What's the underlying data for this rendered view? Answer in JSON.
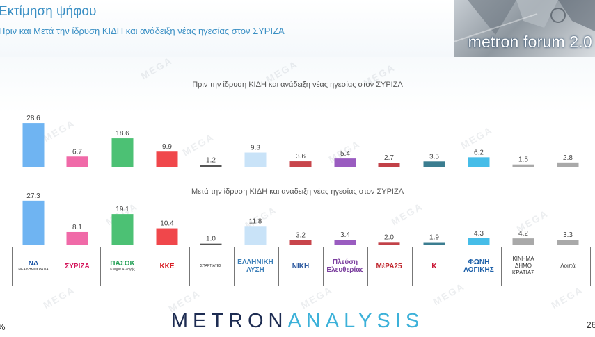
{
  "header": {
    "title": "Εκτίμηση ψήφου",
    "subtitle": "Πριν και Μετά την ίδρυση ΚΙΔΗ και ανάδειξη νέας ηγεσίας στον ΣΥΡΙΖΑ",
    "logo_text": "metron forum 2.0"
  },
  "footer": {
    "brand_part1": "METRON",
    "brand_part2": "ANALYSIS",
    "page_number": "26",
    "pct_mark": "%"
  },
  "watermark": "MEGA",
  "parties": [
    {
      "label": "ΝΔ",
      "sublabel": "ΝΕΑ ΔΗΜΟΚΡΑΤΙΑ",
      "color": "#1f57a6",
      "icon": "nd-logo-icon"
    },
    {
      "label": "ΣΥΡΙΖΑ",
      "sublabel": "",
      "color": "#d4145a",
      "icon": "syriza-logo-icon"
    },
    {
      "label": "ΠΑΣΟΚ",
      "sublabel": "Κίνημα Αλλαγής",
      "color": "#1f9e52",
      "icon": "pasok-logo-icon"
    },
    {
      "label": "ΚΚΕ",
      "sublabel": "",
      "color": "#d81f26",
      "icon": "kke-logo-icon"
    },
    {
      "label": "",
      "sublabel": "ΣΠΑΡΤΙΑΤΕΣ",
      "color": "#b5782c",
      "icon": "spartiates-logo-icon"
    },
    {
      "label": "ΕΛΛΗΝΙΚΗ ΛΥΣΗ",
      "sublabel": "",
      "color": "#3c7fb8",
      "icon": "elliniki-lysi-logo-icon"
    },
    {
      "label": "ΝΙΚΗ",
      "sublabel": "",
      "color": "#2d5aa0",
      "icon": "niki-logo-icon"
    },
    {
      "label": "Πλεύση Ελευθερίας",
      "sublabel": "",
      "color": "#7b3f9e",
      "icon": "plefsi-logo-icon"
    },
    {
      "label": "ΜέΡΑ25",
      "sublabel": "",
      "color": "#c0262d",
      "icon": "mera25-logo-icon"
    },
    {
      "label": "Κ",
      "sublabel": "",
      "color": "#c8102e",
      "icon": "kidi-logo-icon"
    },
    {
      "label": "ΦΩΝΗ ΛΟΓΙΚΗΣ",
      "sublabel": "",
      "color": "#1c5fa8",
      "icon": "foni-logikis-logo-icon"
    },
    {
      "label": "ΚΙΝΗΜΑ ΔΗΜΟ ΚΡΑΤΙΑΣ",
      "sublabel": "",
      "color": "#333333",
      "icon": ""
    },
    {
      "label": "Λοιπά",
      "sublabel": "",
      "color": "#333333",
      "icon": ""
    }
  ],
  "chart_data": [
    {
      "type": "bar",
      "title": "Πριν την ίδρυση ΚΙΔΗ και ανάδειξη νέας ηγεσίας στον ΣΥΡΙΖΑ",
      "values": [
        28.6,
        6.7,
        18.6,
        9.9,
        1.2,
        9.3,
        3.6,
        5.4,
        2.7,
        3.5,
        6.2,
        1.5,
        2.8
      ],
      "colors": [
        "#6fb4f2",
        "#f06aa8",
        "#4cc174",
        "#f0474b",
        "#555555",
        "#c9e3f8",
        "#c8454b",
        "#9a5cc0",
        "#c24148",
        "#3b7d90",
        "#46bde8",
        "#a9a9a9",
        "#a9a9a9"
      ],
      "grid": false,
      "legend": "none"
    },
    {
      "type": "bar",
      "title": "Μετά την ίδρυση ΚΙΔΗ και ανάδειξη νέας ηγεσίας στον ΣΥΡΙΖΑ",
      "values": [
        27.3,
        8.1,
        19.1,
        10.4,
        1.0,
        11.8,
        3.2,
        3.4,
        2.0,
        1.9,
        4.3,
        4.2,
        3.3
      ],
      "colors": [
        "#6fb4f2",
        "#f06aa8",
        "#4cc174",
        "#f0474b",
        "#555555",
        "#c9e3f8",
        "#c8454b",
        "#9a5cc0",
        "#c24148",
        "#3b7d90",
        "#46bde8",
        "#a9a9a9",
        "#a9a9a9"
      ],
      "grid": false,
      "legend": "none"
    }
  ]
}
